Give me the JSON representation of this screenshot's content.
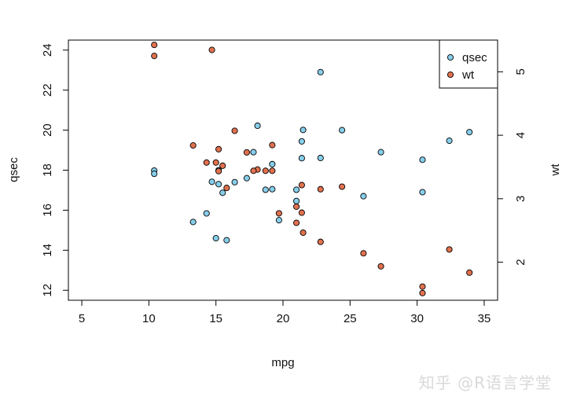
{
  "watermark": "知乎 @R语言学堂",
  "chart_data": {
    "type": "scatter",
    "xlabel": "mpg",
    "ylabel_left": "qsec",
    "ylabel_right": "wt",
    "xlim": [
      4,
      36
    ],
    "ylim_left": [
      11.5,
      24.5
    ],
    "ylim_right": [
      1.4,
      5.5
    ],
    "xticks": [
      5,
      10,
      15,
      20,
      25,
      30,
      35
    ],
    "yticks_left": [
      12,
      14,
      16,
      18,
      20,
      22,
      24
    ],
    "yticks_right": [
      2,
      3,
      4,
      5
    ],
    "legend": {
      "position": "top-right",
      "entries": [
        "qsec",
        "wt"
      ]
    },
    "colors": {
      "qsec": "#87ceeb",
      "wt": "#e0714f"
    },
    "series": [
      {
        "name": "qsec",
        "axis": "left",
        "points": [
          [
            21.0,
            16.46
          ],
          [
            21.0,
            17.02
          ],
          [
            22.8,
            18.61
          ],
          [
            21.4,
            19.44
          ],
          [
            18.7,
            17.02
          ],
          [
            18.1,
            20.22
          ],
          [
            14.3,
            15.84
          ],
          [
            24.4,
            20.0
          ],
          [
            22.8,
            22.9
          ],
          [
            19.2,
            18.3
          ],
          [
            17.8,
            18.9
          ],
          [
            16.4,
            17.4
          ],
          [
            17.3,
            17.6
          ],
          [
            15.2,
            18.0
          ],
          [
            10.4,
            17.98
          ],
          [
            10.4,
            17.82
          ],
          [
            14.7,
            17.42
          ],
          [
            32.4,
            19.47
          ],
          [
            30.4,
            18.52
          ],
          [
            33.9,
            19.9
          ],
          [
            21.5,
            20.01
          ],
          [
            15.5,
            16.87
          ],
          [
            15.2,
            17.3
          ],
          [
            13.3,
            15.41
          ],
          [
            19.2,
            17.05
          ],
          [
            27.3,
            18.9
          ],
          [
            26.0,
            16.7
          ],
          [
            30.4,
            16.9
          ],
          [
            15.8,
            14.5
          ],
          [
            19.7,
            15.5
          ],
          [
            15.0,
            14.6
          ],
          [
            21.4,
            18.6
          ]
        ]
      },
      {
        "name": "wt",
        "axis": "right",
        "points": [
          [
            21.0,
            2.62
          ],
          [
            21.0,
            2.875
          ],
          [
            22.8,
            2.32
          ],
          [
            21.4,
            3.215
          ],
          [
            18.7,
            3.44
          ],
          [
            18.1,
            3.46
          ],
          [
            14.3,
            3.57
          ],
          [
            24.4,
            3.19
          ],
          [
            22.8,
            3.15
          ],
          [
            19.2,
            3.44
          ],
          [
            17.8,
            3.44
          ],
          [
            16.4,
            4.07
          ],
          [
            17.3,
            3.73
          ],
          [
            15.2,
            3.78
          ],
          [
            10.4,
            5.25
          ],
          [
            10.4,
            5.424
          ],
          [
            14.7,
            5.345
          ],
          [
            32.4,
            2.2
          ],
          [
            30.4,
            1.615
          ],
          [
            33.9,
            1.835
          ],
          [
            21.5,
            2.465
          ],
          [
            15.5,
            3.52
          ],
          [
            15.2,
            3.435
          ],
          [
            13.3,
            3.84
          ],
          [
            19.2,
            3.845
          ],
          [
            27.3,
            1.935
          ],
          [
            26.0,
            2.14
          ],
          [
            30.4,
            1.513
          ],
          [
            15.8,
            3.17
          ],
          [
            19.7,
            2.77
          ],
          [
            15.0,
            3.57
          ],
          [
            21.4,
            2.78
          ]
        ]
      }
    ]
  }
}
